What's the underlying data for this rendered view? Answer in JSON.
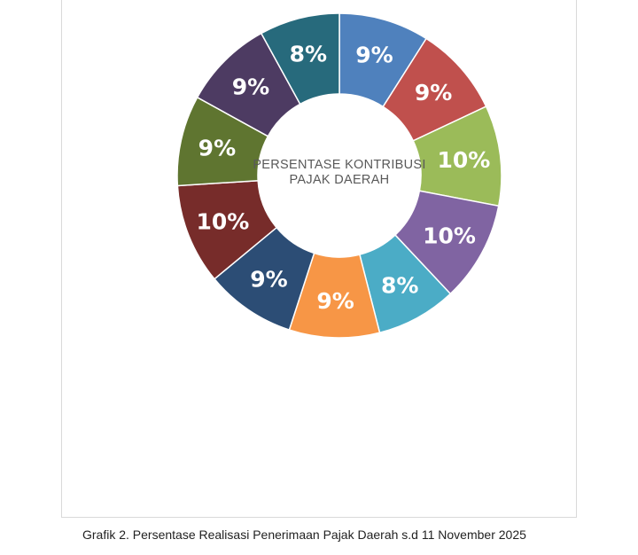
{
  "chart_data": {
    "type": "pie",
    "hole": true,
    "center_title_lines": [
      "PERSENTASE KONTRIBUSI",
      "PAJAK DAERAH"
    ],
    "slices": [
      {
        "label": "9%",
        "value": 9,
        "color": "#4F81BD"
      },
      {
        "label": "9%",
        "value": 9,
        "color": "#C0504D"
      },
      {
        "label": "10%",
        "value": 10,
        "color": "#9BBB59"
      },
      {
        "label": "10%",
        "value": 10,
        "color": "#8064A2"
      },
      {
        "label": "8%",
        "value": 8,
        "color": "#4BACC6"
      },
      {
        "label": "9%",
        "value": 9,
        "color": "#F79646"
      },
      {
        "label": "9%",
        "value": 9,
        "color": "#2C4D75"
      },
      {
        "label": "10%",
        "value": 10,
        "color": "#772C2A"
      },
      {
        "label": "9%",
        "value": 9,
        "color": "#5F7530"
      },
      {
        "label": "9%",
        "value": 9,
        "color": "#4D3B62"
      },
      {
        "label": "8%",
        "value": 8,
        "color": "#276A7C"
      }
    ],
    "legend": "none",
    "label_color": "#ffffff"
  },
  "caption": "Grafik 2. Persentase Realisasi Penerimaan Pajak Daerah s.d 11 November 2025"
}
